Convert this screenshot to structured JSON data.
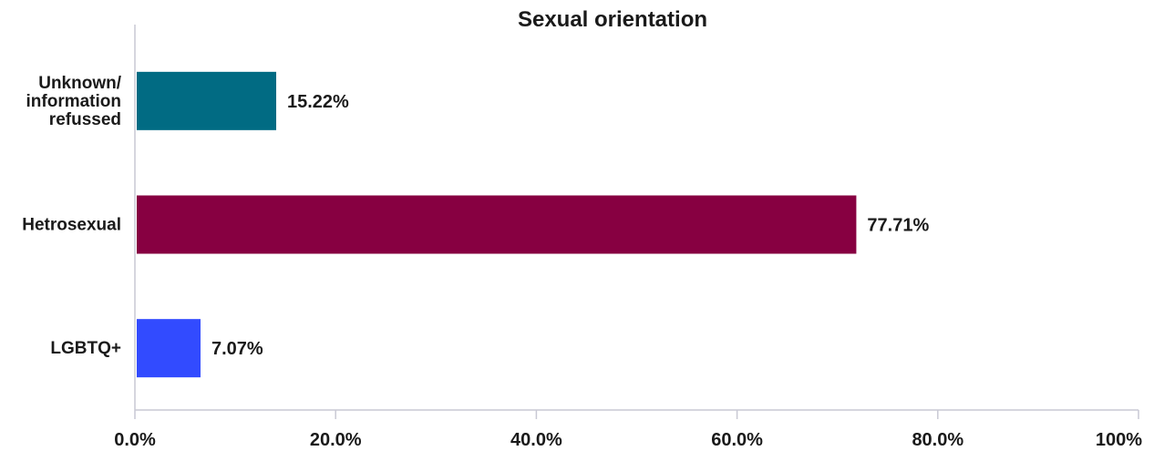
{
  "chart_data": {
    "type": "bar",
    "orientation": "horizontal",
    "title": "Sexual orientation",
    "xlabel": "",
    "ylabel": "",
    "xlim": [
      0,
      100
    ],
    "grid": false,
    "categories": [
      {
        "lines": [
          "Unknown/",
          "information",
          "refussed"
        ]
      },
      {
        "lines": [
          "Hetrosexual"
        ]
      },
      {
        "lines": [
          "LGBTQ+"
        ]
      }
    ],
    "values": [
      15.22,
      77.71,
      7.07
    ],
    "value_labels": [
      "15.22%",
      "77.71%",
      "7.07%"
    ],
    "colors": [
      "#016b83",
      "#870041",
      "#324bff"
    ],
    "xticks": [
      {
        "value": 0,
        "label": "0.0%"
      },
      {
        "value": 20,
        "label": "20.0%"
      },
      {
        "value": 40,
        "label": "40.0%"
      },
      {
        "value": 60,
        "label": "60.0%"
      },
      {
        "value": 80,
        "label": "80.0%"
      },
      {
        "value": 100,
        "label": "100%"
      }
    ]
  }
}
